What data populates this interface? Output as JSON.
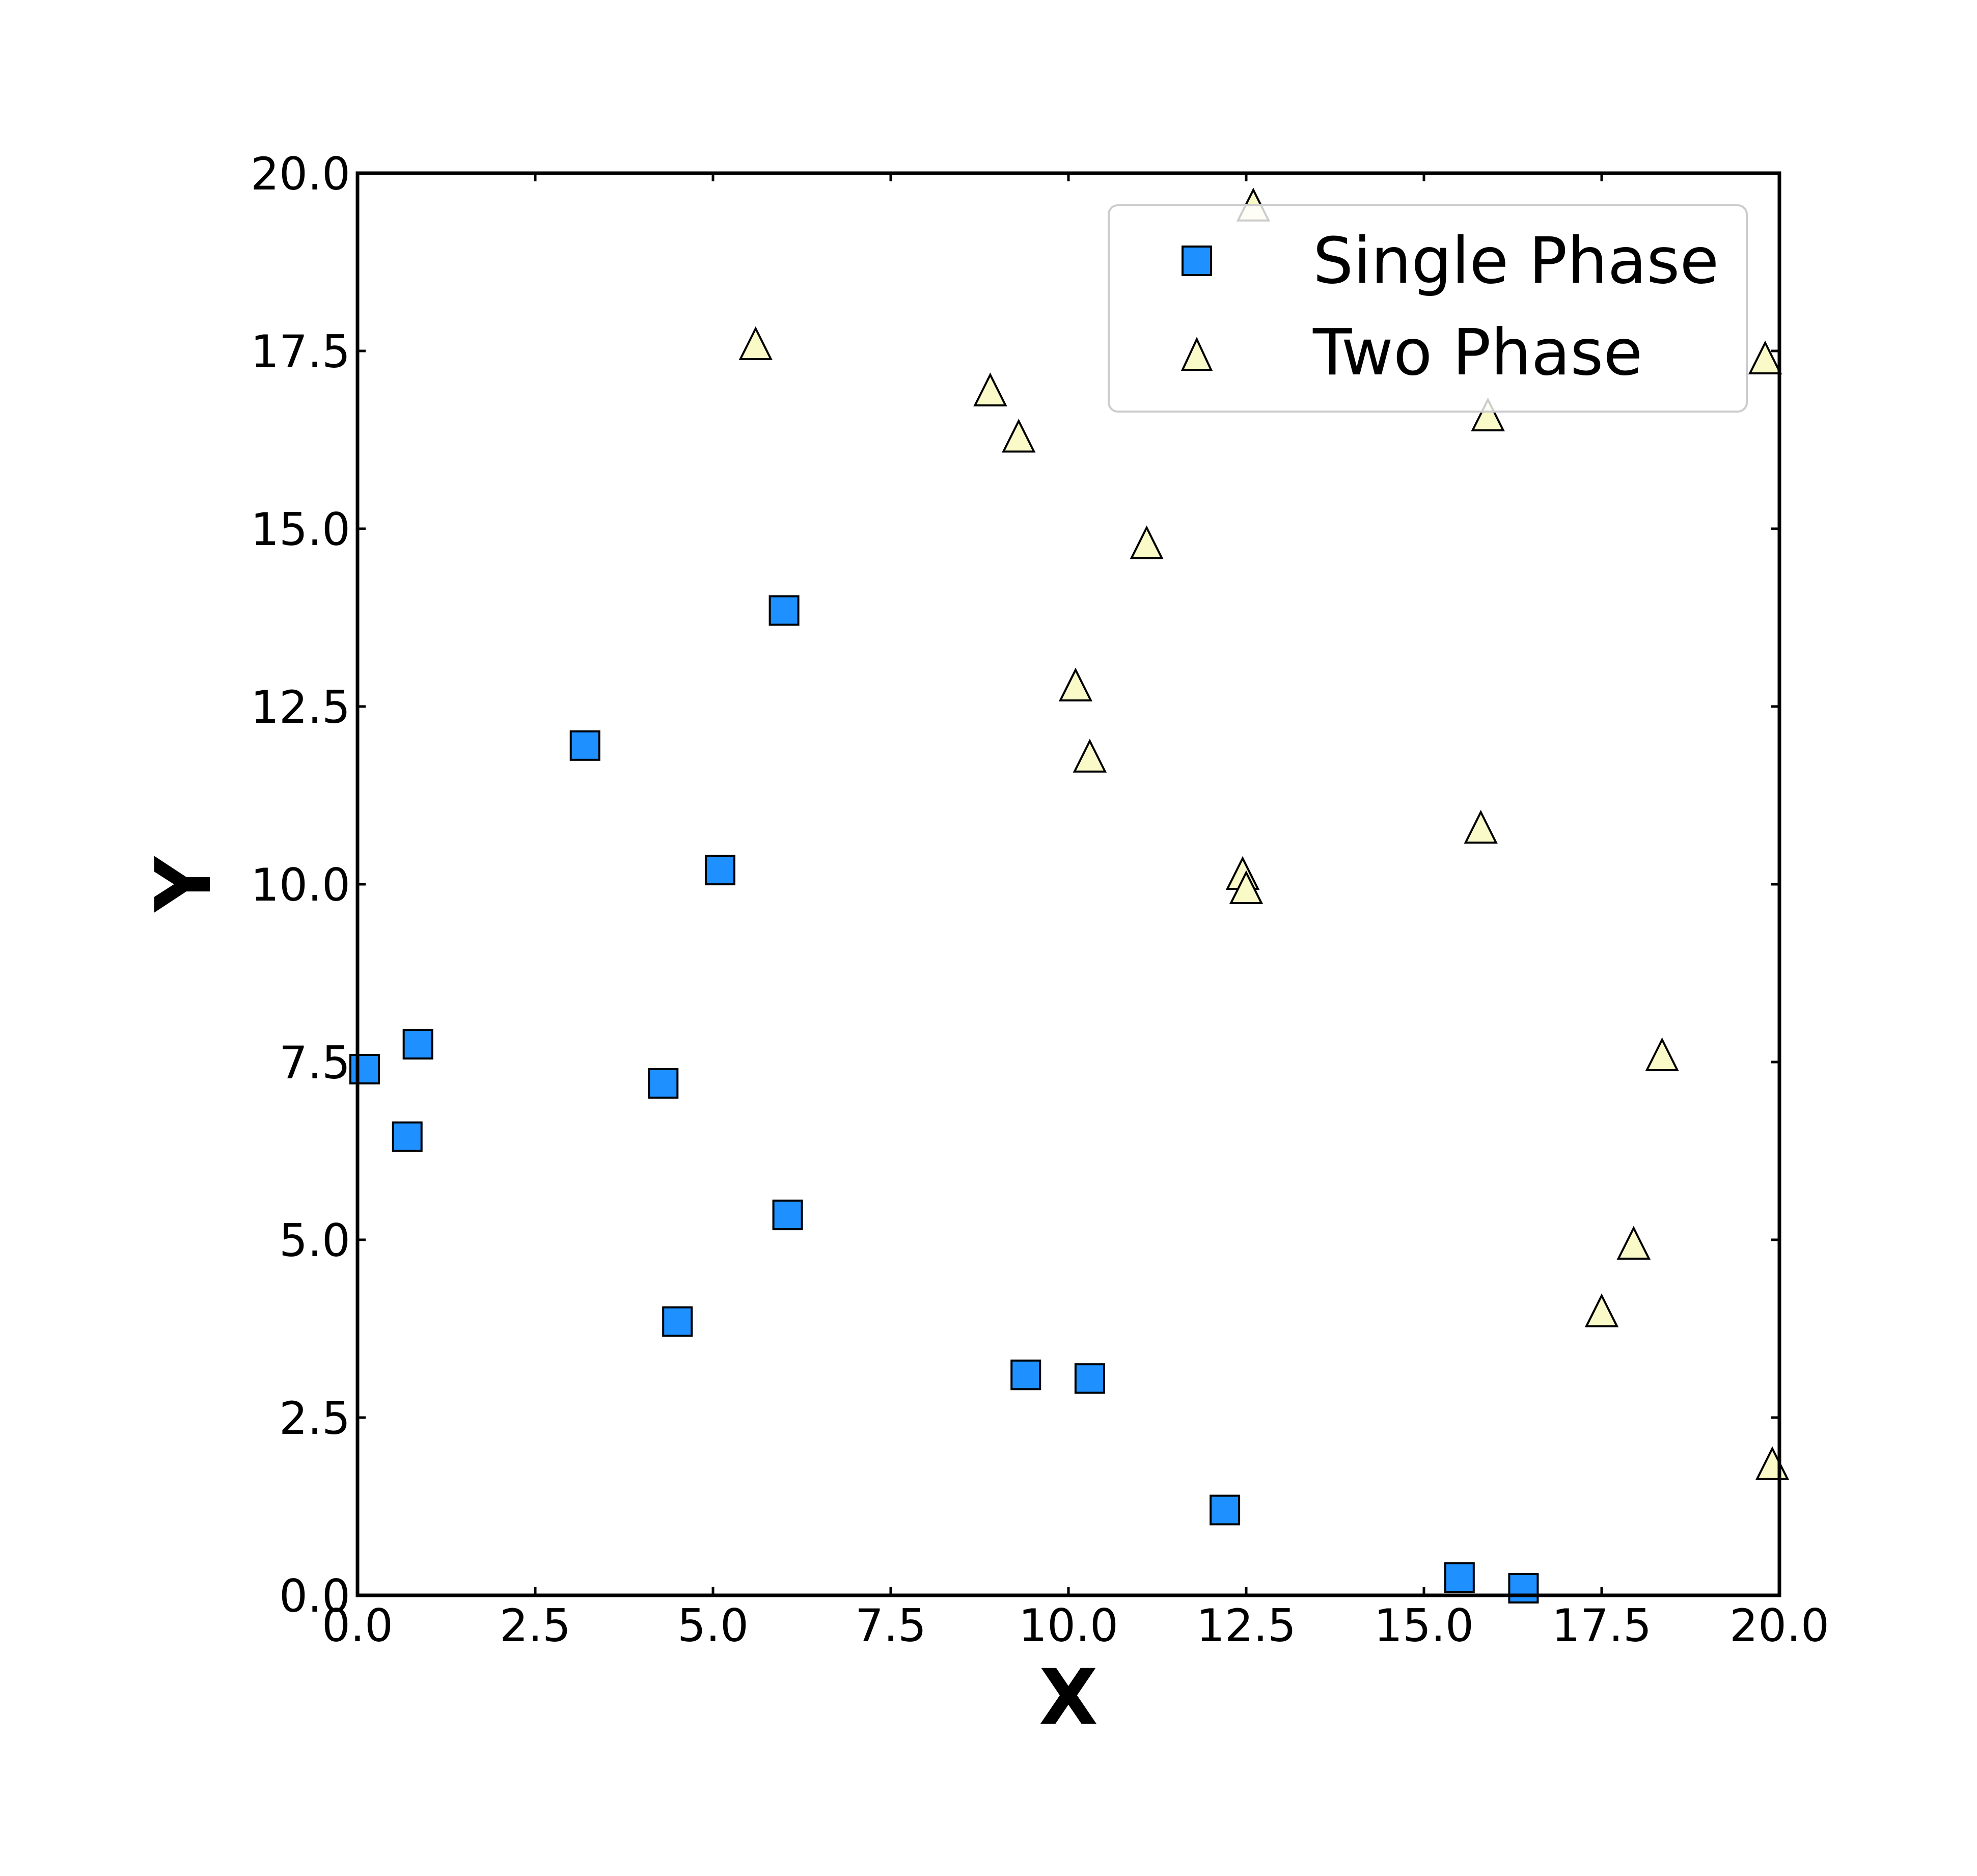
{
  "chart_data": {
    "type": "scatter",
    "xlabel": "X",
    "ylabel": "Y",
    "xlim": [
      0,
      20
    ],
    "ylim": [
      0,
      20
    ],
    "xticks": [
      "0.0",
      "2.5",
      "5.0",
      "7.5",
      "10.0",
      "12.5",
      "15.0",
      "17.5",
      "20.0"
    ],
    "yticks": [
      "0.0",
      "2.5",
      "5.0",
      "7.5",
      "10.0",
      "12.5",
      "15.0",
      "17.5",
      "20.0"
    ],
    "grid": false,
    "legend_position": "top-right",
    "series": [
      {
        "name": "Single Phase",
        "marker": "square",
        "color": "#1e90ff",
        "edge_color": "#000000",
        "points": [
          {
            "x": 0.1,
            "y": 7.4
          },
          {
            "x": 0.7,
            "y": 6.45
          },
          {
            "x": 0.85,
            "y": 7.75
          },
          {
            "x": 3.2,
            "y": 11.95
          },
          {
            "x": 4.3,
            "y": 7.2
          },
          {
            "x": 4.5,
            "y": 3.85
          },
          {
            "x": 5.1,
            "y": 10.2
          },
          {
            "x": 6.0,
            "y": 13.85
          },
          {
            "x": 6.05,
            "y": 5.35
          },
          {
            "x": 9.4,
            "y": 3.1
          },
          {
            "x": 10.3,
            "y": 3.05
          },
          {
            "x": 12.2,
            "y": 1.2
          },
          {
            "x": 15.5,
            "y": 0.25
          },
          {
            "x": 16.4,
            "y": 0.1
          }
        ]
      },
      {
        "name": "Two Phase",
        "marker": "triangle",
        "color": "#fafac8",
        "edge_color": "#000000",
        "points": [
          {
            "x": 5.6,
            "y": 17.6
          },
          {
            "x": 8.9,
            "y": 16.95
          },
          {
            "x": 9.3,
            "y": 16.3
          },
          {
            "x": 10.1,
            "y": 12.8
          },
          {
            "x": 10.3,
            "y": 11.8
          },
          {
            "x": 11.1,
            "y": 14.8
          },
          {
            "x": 12.45,
            "y": 10.15
          },
          {
            "x": 12.5,
            "y": 9.95
          },
          {
            "x": 12.6,
            "y": 19.55
          },
          {
            "x": 15.8,
            "y": 10.8
          },
          {
            "x": 15.9,
            "y": 16.6
          },
          {
            "x": 17.5,
            "y": 4.0
          },
          {
            "x": 17.95,
            "y": 4.95
          },
          {
            "x": 18.35,
            "y": 7.6
          },
          {
            "x": 19.8,
            "y": 17.4
          },
          {
            "x": 19.9,
            "y": 1.85
          }
        ]
      }
    ]
  }
}
